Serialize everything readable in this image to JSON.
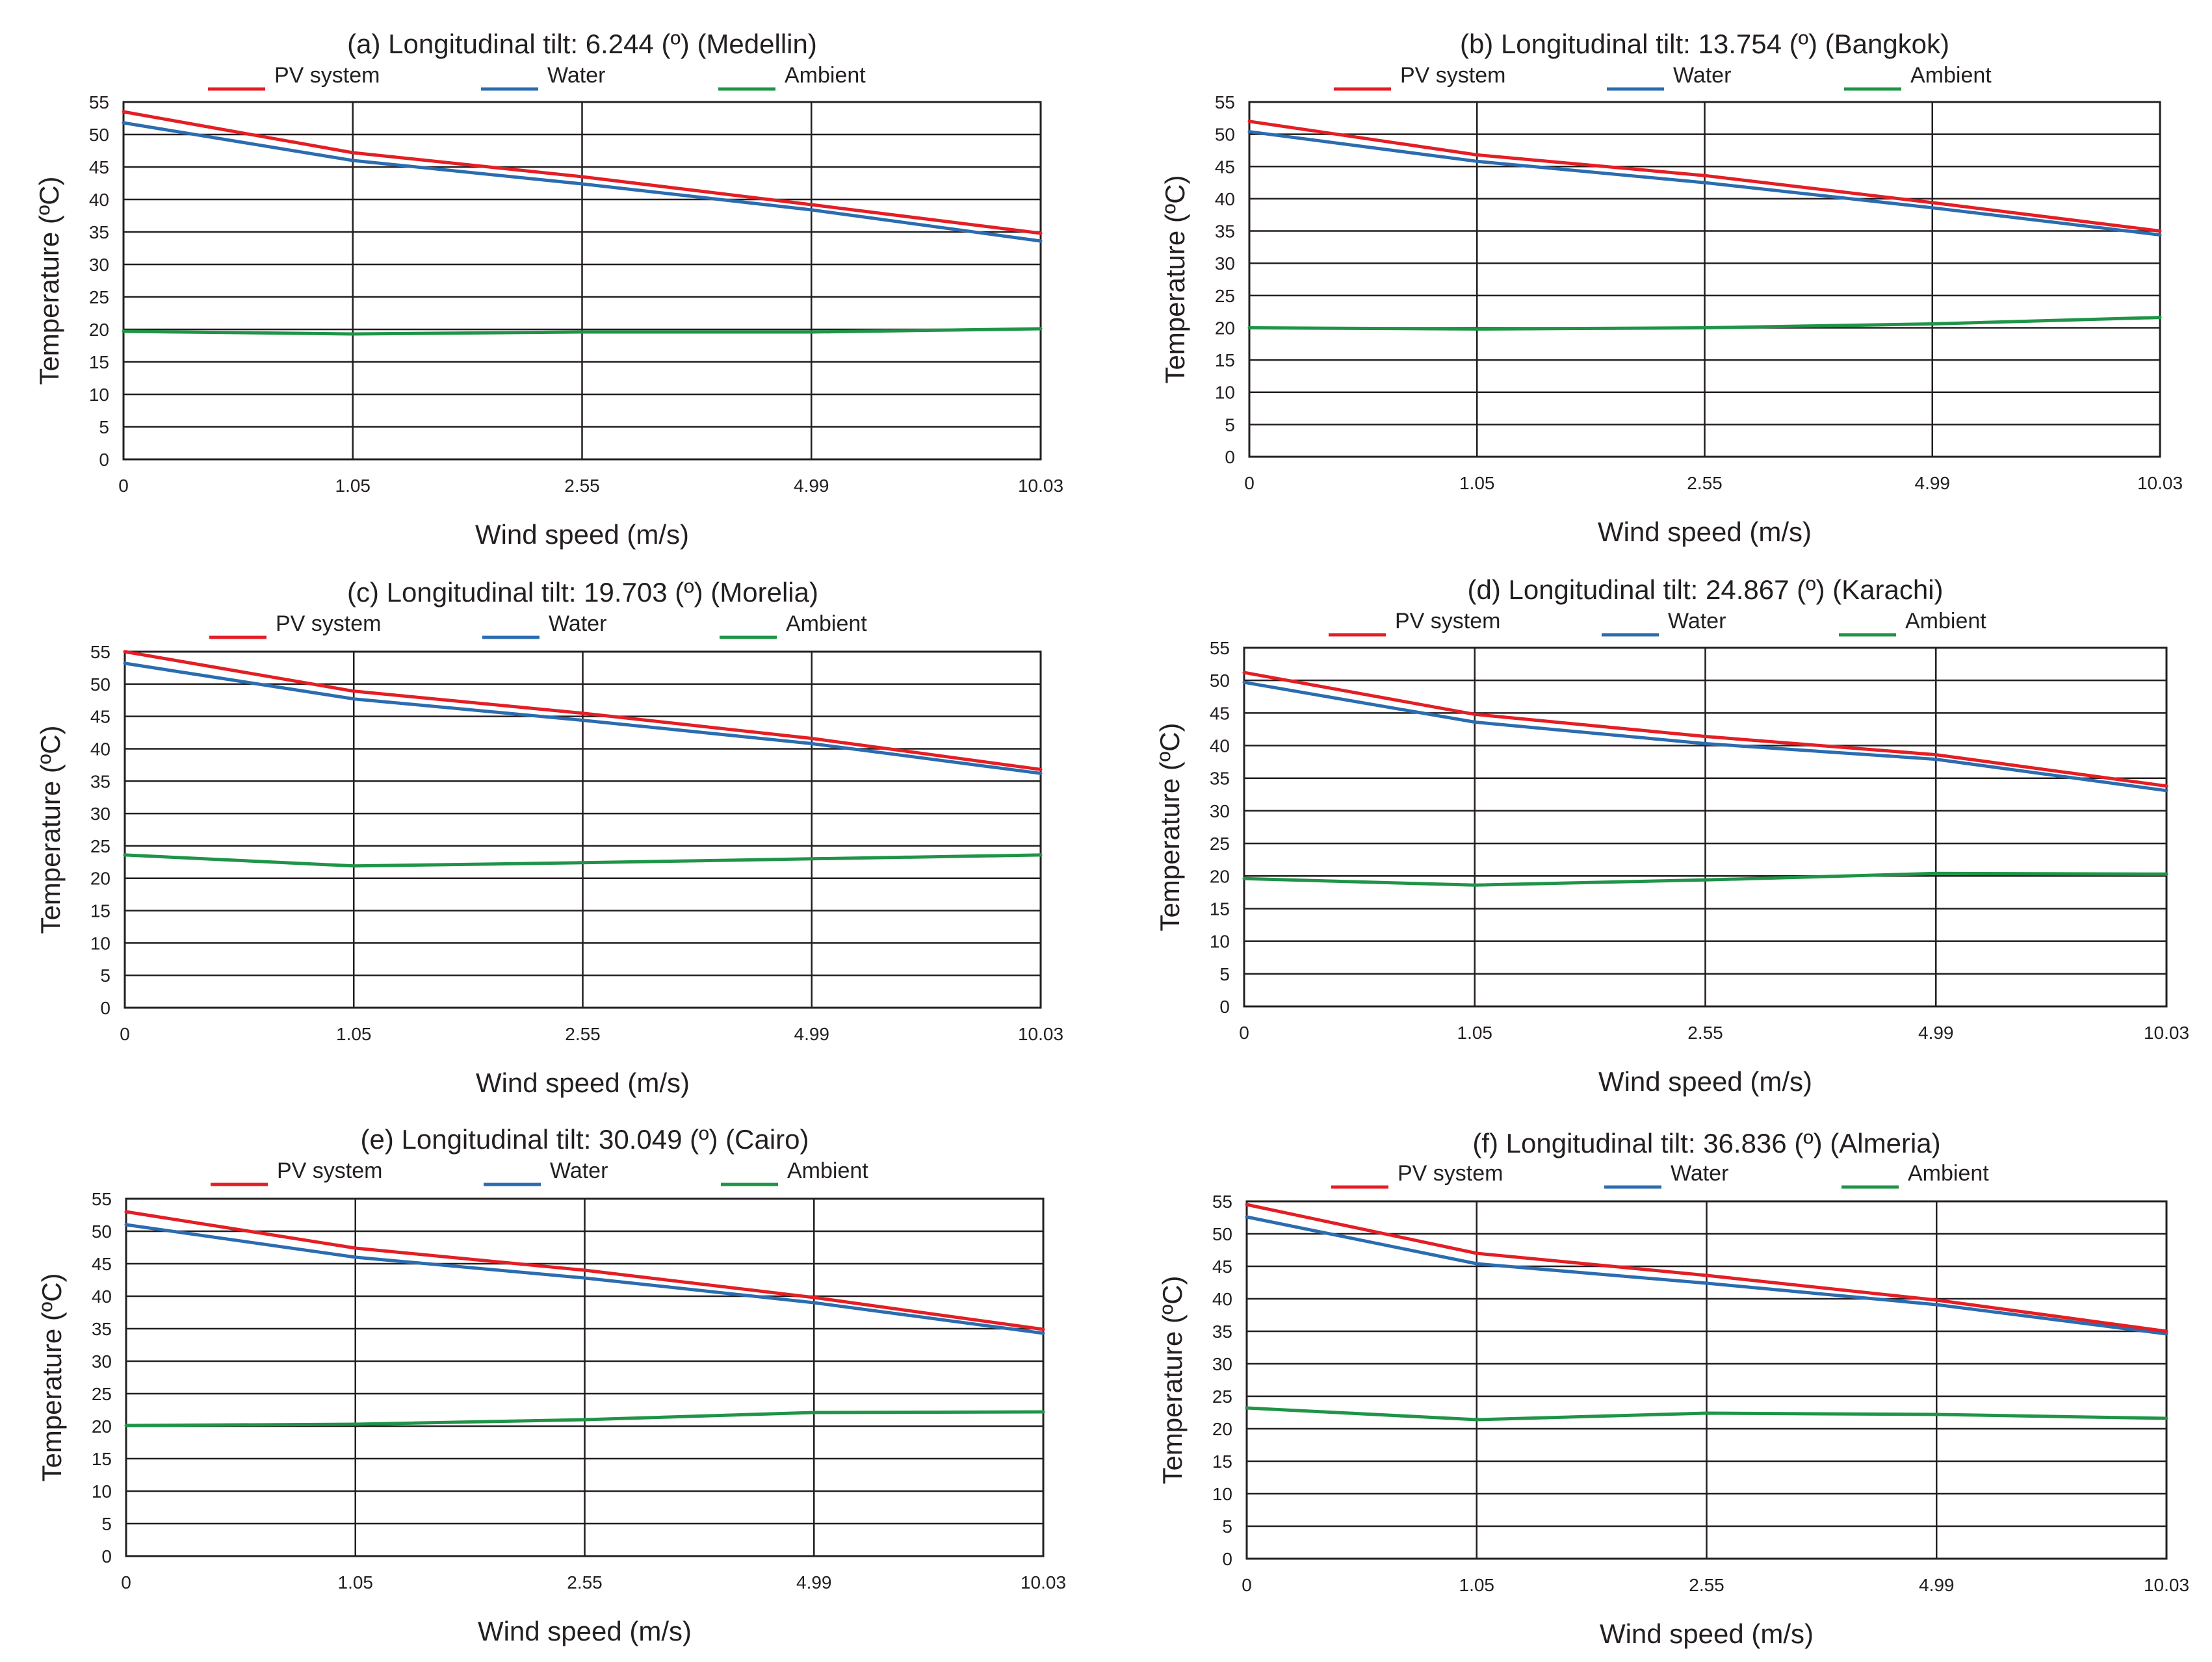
{
  "colors": {
    "pv": "#e31e24",
    "water": "#2b6cb0",
    "ambient": "#1f9447"
  },
  "chart_data": [
    {
      "type": "line",
      "title": "(a) Longitudinal tilt: 6.244 (º) (Medellin)",
      "xlabel": "Wind speed (m/s)",
      "ylabel": "Temperature (ºC)",
      "categories": [
        "0",
        "1.05",
        "2.55",
        "4.99",
        "10.03"
      ],
      "yticks": [
        "0",
        "5",
        "10",
        "15",
        "20",
        "25",
        "30",
        "35",
        "40",
        "45",
        "50",
        "55"
      ],
      "ylim": [
        0,
        55
      ],
      "grid": true,
      "legend": "top",
      "series": [
        {
          "name": "PV system",
          "values": [
            53.5,
            47.2,
            43.5,
            39.2,
            34.8
          ]
        },
        {
          "name": "Water",
          "values": [
            51.8,
            46.0,
            42.4,
            38.4,
            33.6
          ]
        },
        {
          "name": "Ambient",
          "values": [
            19.7,
            19.3,
            19.6,
            19.6,
            20.1
          ]
        }
      ]
    },
    {
      "type": "line",
      "title": "(b) Longitudinal tilt: 13.754 (º) (Bangkok)",
      "xlabel": "Wind speed (m/s)",
      "ylabel": "Temperature (ºC)",
      "categories": [
        "0",
        "1.05",
        "2.55",
        "4.99",
        "10.03"
      ],
      "yticks": [
        "0",
        "5",
        "10",
        "15",
        "20",
        "25",
        "30",
        "35",
        "40",
        "45",
        "50",
        "55"
      ],
      "ylim": [
        0,
        55
      ],
      "grid": true,
      "legend": "top",
      "series": [
        {
          "name": "PV system",
          "values": [
            52.0,
            46.8,
            43.6,
            39.4,
            35.0
          ]
        },
        {
          "name": "Water",
          "values": [
            50.4,
            45.8,
            42.5,
            38.6,
            34.4
          ]
        },
        {
          "name": "Ambient",
          "values": [
            20.0,
            19.8,
            20.0,
            20.6,
            21.6
          ]
        }
      ]
    },
    {
      "type": "line",
      "title": "(c) Longitudinal tilt: 19.703 (º) (Morelia)",
      "xlabel": "Wind speed (m/s)",
      "ylabel": "Temperature (ºC)",
      "categories": [
        "0",
        "1.05",
        "2.55",
        "4.99",
        "10.03"
      ],
      "yticks": [
        "0",
        "5",
        "10",
        "15",
        "20",
        "25",
        "30",
        "35",
        "40",
        "45",
        "50",
        "55"
      ],
      "ylim": [
        0,
        55
      ],
      "grid": true,
      "legend": "top",
      "series": [
        {
          "name": "PV system",
          "values": [
            55.0,
            48.9,
            45.5,
            41.6,
            36.8
          ]
        },
        {
          "name": "Water",
          "values": [
            53.2,
            47.7,
            44.4,
            40.8,
            36.2
          ]
        },
        {
          "name": "Ambient",
          "values": [
            23.6,
            21.9,
            22.4,
            23.0,
            23.6
          ]
        }
      ]
    },
    {
      "type": "line",
      "title": "(d) Longitudinal tilt: 24.867 (º) (Karachi)",
      "xlabel": "Wind speed (m/s)",
      "ylabel": "Temperature (ºC)",
      "categories": [
        "0",
        "1.05",
        "2.55",
        "4.99",
        "10.03"
      ],
      "yticks": [
        "0",
        "5",
        "10",
        "15",
        "20",
        "25",
        "30",
        "35",
        "40",
        "45",
        "50",
        "55"
      ],
      "ylim": [
        0,
        55
      ],
      "grid": true,
      "legend": "top",
      "series": [
        {
          "name": "PV system",
          "values": [
            51.2,
            44.8,
            41.4,
            38.6,
            33.8
          ]
        },
        {
          "name": "Water",
          "values": [
            49.7,
            43.6,
            40.3,
            37.9,
            33.1
          ]
        },
        {
          "name": "Ambient",
          "values": [
            19.6,
            18.6,
            19.4,
            20.4,
            20.3
          ]
        }
      ]
    },
    {
      "type": "line",
      "title": "(e) Longitudinal tilt: 30.049 (º) (Cairo)",
      "xlabel": "Wind speed (m/s)",
      "ylabel": "Temperature (ºC)",
      "categories": [
        "0",
        "1.05",
        "2.55",
        "4.99",
        "10.03"
      ],
      "yticks": [
        "0",
        "5",
        "10",
        "15",
        "20",
        "25",
        "30",
        "35",
        "40",
        "45",
        "50",
        "55"
      ],
      "ylim": [
        0,
        55
      ],
      "grid": true,
      "legend": "top",
      "series": [
        {
          "name": "PV system",
          "values": [
            53.0,
            47.4,
            44.0,
            39.8,
            34.9
          ]
        },
        {
          "name": "Water",
          "values": [
            51.0,
            46.0,
            42.8,
            39.0,
            34.3
          ]
        },
        {
          "name": "Ambient",
          "values": [
            20.1,
            20.3,
            21.0,
            22.1,
            22.2
          ]
        }
      ]
    },
    {
      "type": "line",
      "title": "(f) Longitudinal tilt: 36.836 (º) (Almeria)",
      "xlabel": "Wind speed (m/s)",
      "ylabel": "Temperature (ºC)",
      "categories": [
        "0",
        "1.05",
        "2.55",
        "4.99",
        "10.03"
      ],
      "yticks": [
        "0",
        "5",
        "10",
        "15",
        "20",
        "25",
        "30",
        "35",
        "40",
        "45",
        "50",
        "55"
      ],
      "ylim": [
        0,
        55
      ],
      "grid": true,
      "legend": "top",
      "series": [
        {
          "name": "PV system",
          "values": [
            54.5,
            47.0,
            43.6,
            39.8,
            35.0
          ]
        },
        {
          "name": "Water",
          "values": [
            52.6,
            45.4,
            42.4,
            39.1,
            34.6
          ]
        },
        {
          "name": "Ambient",
          "values": [
            23.2,
            21.4,
            22.4,
            22.2,
            21.6
          ]
        }
      ]
    }
  ]
}
